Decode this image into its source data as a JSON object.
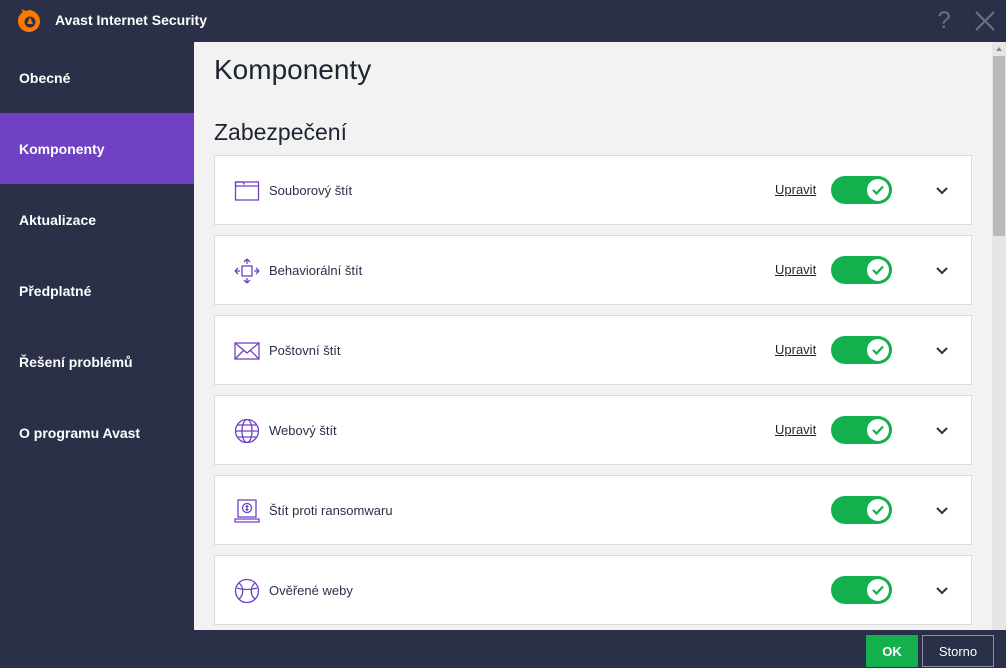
{
  "window": {
    "title": "Avast Internet Security",
    "help_label": "?",
    "brand_color": "#ff7800"
  },
  "sidebar": {
    "items": [
      {
        "label": "Obecné",
        "active": false
      },
      {
        "label": "Komponenty",
        "active": true
      },
      {
        "label": "Aktualizace",
        "active": false
      },
      {
        "label": "Předplatné",
        "active": false
      },
      {
        "label": "Řešení problémů",
        "active": false
      },
      {
        "label": "O programu Avast",
        "active": false
      }
    ],
    "active_color": "#7041c3"
  },
  "main": {
    "page_title": "Komponenty",
    "section_title": "Zabezpečení",
    "components": [
      {
        "label": "Souborový štít",
        "link": "Upravit",
        "enabled": true,
        "icon": "file-shield-icon"
      },
      {
        "label": "Behaviorální štít",
        "link": "Upravit",
        "enabled": true,
        "icon": "behavior-shield-icon"
      },
      {
        "label": "Poštovní štít",
        "link": "Upravit",
        "enabled": true,
        "icon": "mail-shield-icon"
      },
      {
        "label": "Webový štít",
        "link": "Upravit",
        "enabled": true,
        "icon": "web-shield-icon"
      },
      {
        "label": "Štít proti ransomwaru",
        "link": "",
        "enabled": true,
        "icon": "ransomware-shield-icon"
      },
      {
        "label": "Ověřené weby",
        "link": "",
        "enabled": true,
        "icon": "real-site-icon"
      }
    ]
  },
  "footer": {
    "ok_label": "OK",
    "cancel_label": "Storno"
  },
  "colors": {
    "toggle_on": "#14b04e",
    "icon_purple": "#7041c3"
  }
}
